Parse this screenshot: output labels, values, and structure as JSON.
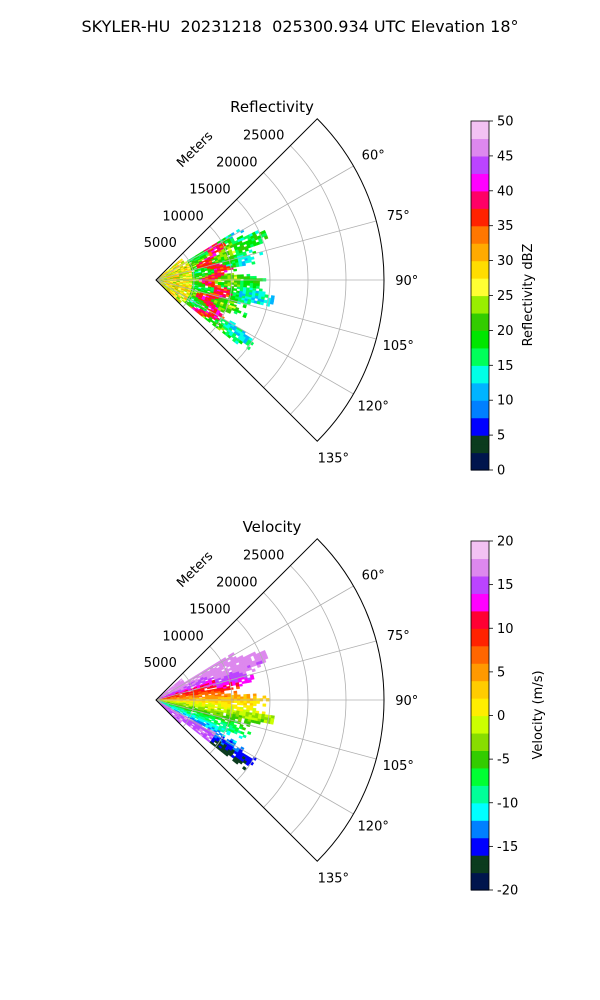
{
  "figure": {
    "title": "SKYLER-HU  20231218  025300.934 UTC Elevation 18°"
  },
  "chart_data": [
    {
      "type": "heatmap",
      "subtype": "polar-sector (PPI radar scan)",
      "title": "Reflectivity",
      "radial_label": "Meters",
      "radial_ticks": [
        5000,
        10000,
        15000,
        20000,
        25000
      ],
      "radial_range": [
        0,
        30000
      ],
      "azimuth_ticks_deg": [
        60,
        75,
        90,
        105,
        120,
        135
      ],
      "azimuth_range_deg": [
        45,
        135
      ],
      "grid": true,
      "colorbar": {
        "label": "Reflectivity dBZ",
        "range": [
          0,
          50
        ],
        "ticks": [
          0,
          5,
          10,
          15,
          20,
          25,
          30,
          35,
          40,
          45,
          50
        ]
      },
      "colormap_stops": [
        {
          "v": 0,
          "c": "#00154d"
        },
        {
          "v": 2.5,
          "c": "#0b3b1e"
        },
        {
          "v": 5,
          "c": "#0000ff"
        },
        {
          "v": 7.5,
          "c": "#0080ff"
        },
        {
          "v": 10,
          "c": "#00b4ff"
        },
        {
          "v": 12.5,
          "c": "#00ffe6"
        },
        {
          "v": 15,
          "c": "#00ff5a"
        },
        {
          "v": 17.5,
          "c": "#00e600"
        },
        {
          "v": 20,
          "c": "#33cc00"
        },
        {
          "v": 22.5,
          "c": "#99ee00"
        },
        {
          "v": 25,
          "c": "#ffff33"
        },
        {
          "v": 27.5,
          "c": "#ffdd00"
        },
        {
          "v": 30,
          "c": "#ffaa00"
        },
        {
          "v": 32.5,
          "c": "#ff7700"
        },
        {
          "v": 35,
          "c": "#ff2200"
        },
        {
          "v": 37.5,
          "c": "#ff0066"
        },
        {
          "v": 40,
          "c": "#ff00ff"
        },
        {
          "v": 42.5,
          "c": "#bb44ff"
        },
        {
          "v": 45,
          "c": "#dd88ee"
        },
        {
          "v": 47.5,
          "c": "#f3c2f3"
        },
        {
          "v": 50,
          "c": "#ffffff"
        }
      ],
      "cells_description": "irregular echo region roughly 0–15000 m range between about 55° and 130° azimuth; mostly 15–25 dBZ with red/magenta (35–42 dBZ) bands near 8000–10000 m"
    },
    {
      "type": "heatmap",
      "subtype": "polar-sector (PPI radar scan)",
      "title": "Velocity",
      "radial_label": "Meters",
      "radial_ticks": [
        5000,
        10000,
        15000,
        20000,
        25000
      ],
      "radial_range": [
        0,
        30000
      ],
      "azimuth_ticks_deg": [
        60,
        75,
        90,
        105,
        120,
        135
      ],
      "azimuth_range_deg": [
        45,
        135
      ],
      "grid": true,
      "colorbar": {
        "label": "Velocity (m/s)",
        "range": [
          -20,
          20
        ],
        "ticks": [
          -20,
          -15,
          -10,
          -5,
          0,
          5,
          10,
          15,
          20
        ]
      },
      "colormap_stops": [
        {
          "v": -20,
          "c": "#00154d"
        },
        {
          "v": -18,
          "c": "#0b3b1e"
        },
        {
          "v": -16,
          "c": "#0000ff"
        },
        {
          "v": -14,
          "c": "#0080ff"
        },
        {
          "v": -12,
          "c": "#00ffff"
        },
        {
          "v": -10,
          "c": "#00ff99"
        },
        {
          "v": -8,
          "c": "#00ff33"
        },
        {
          "v": -6,
          "c": "#33cc00"
        },
        {
          "v": -4,
          "c": "#88dd00"
        },
        {
          "v": -2,
          "c": "#ccff00"
        },
        {
          "v": 0,
          "c": "#ffee00"
        },
        {
          "v": 2,
          "c": "#ffcc00"
        },
        {
          "v": 4,
          "c": "#ff9900"
        },
        {
          "v": 6,
          "c": "#ff6600"
        },
        {
          "v": 8,
          "c": "#ff2200"
        },
        {
          "v": 10,
          "c": "#ff0033"
        },
        {
          "v": 12,
          "c": "#ff00ff"
        },
        {
          "v": 14,
          "c": "#bb44ff"
        },
        {
          "v": 16,
          "c": "#dd88ee"
        },
        {
          "v": 18,
          "c": "#f3c2f3"
        },
        {
          "v": 20,
          "c": "#ffffff"
        }
      ],
      "cells_description": "positive (outbound, red/magenta up to ~15 m/s) echoes at azimuths below ~90°, near-zero (yellow/green) along ~90–100°, negative (cyan/blue to ~-12 m/s) at azimuths beyond ~100°, within about 0–15000 m"
    }
  ]
}
